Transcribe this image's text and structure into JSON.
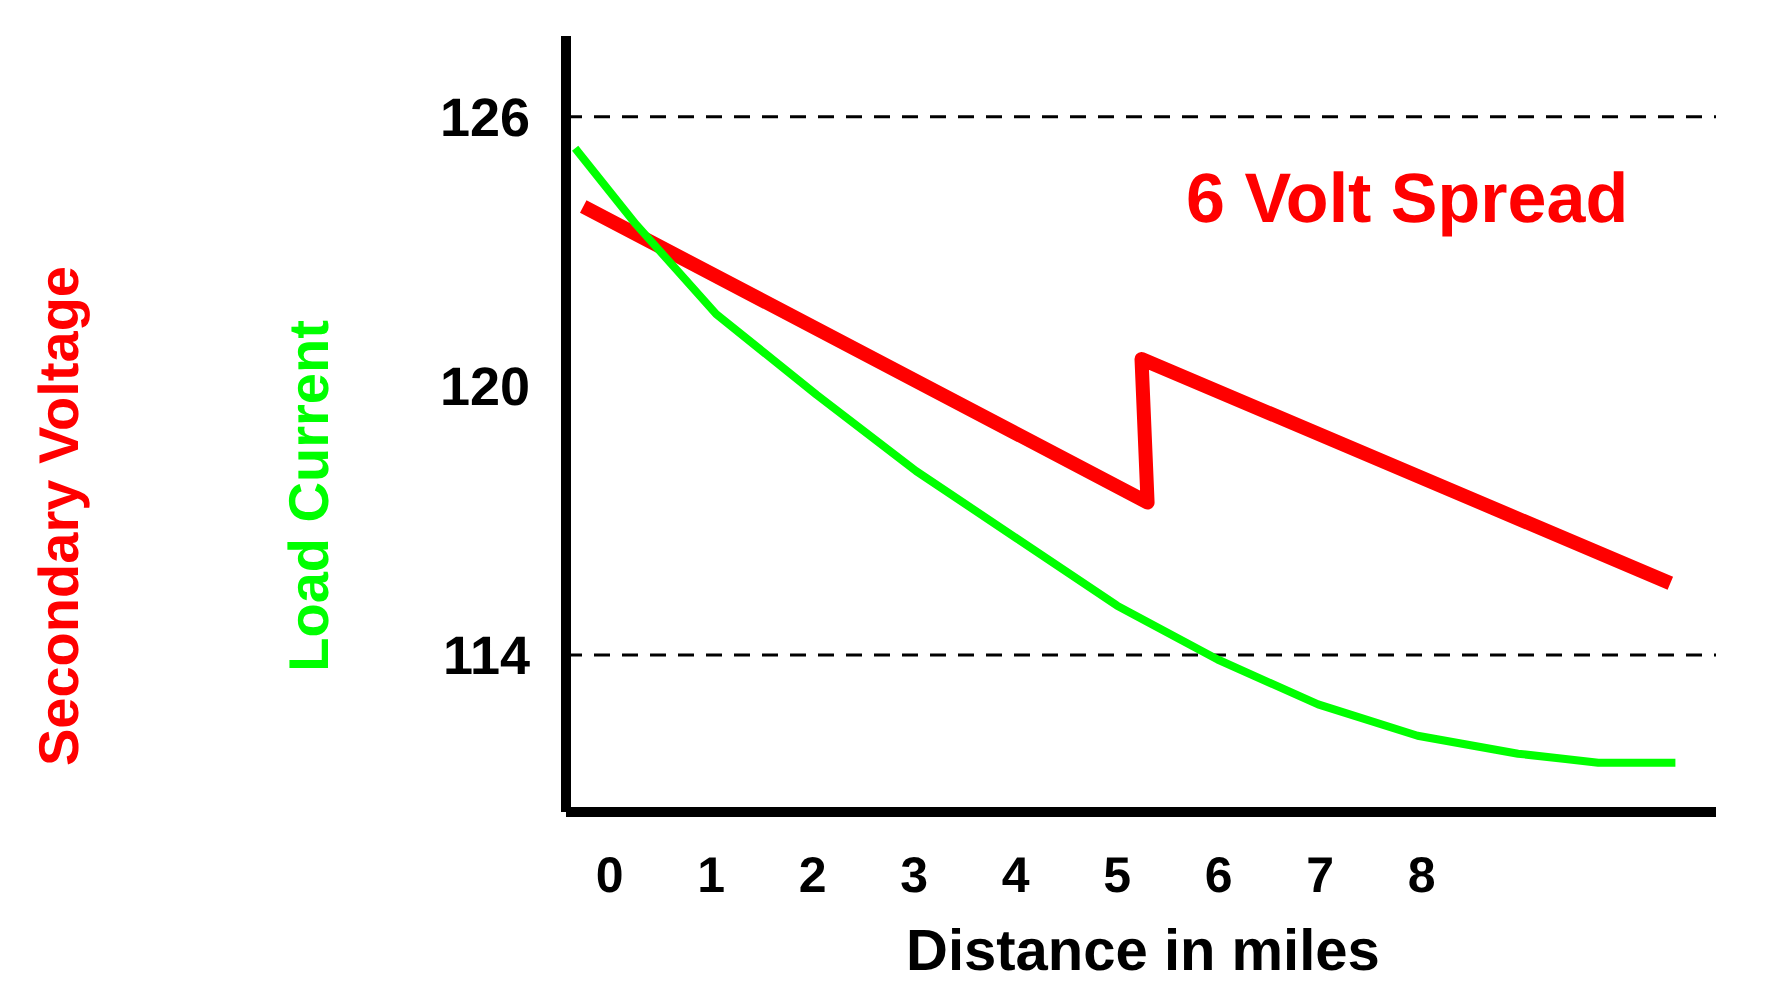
{
  "chart_data": {
    "type": "line",
    "xlabel": "Distance in miles",
    "annotations": [
      "6 Volt Spread"
    ],
    "xlim": [
      -0.43,
      10.9
    ],
    "xticks": [
      0,
      1,
      2,
      3,
      4,
      5,
      6,
      7,
      8
    ],
    "ylim": [
      110.5,
      127.8
    ],
    "yticks": [
      114,
      120,
      126
    ],
    "legend": false,
    "marker": "none",
    "line_style": "solid",
    "ref_lines": [
      {
        "axis": "y",
        "value": 126,
        "color": "#000000",
        "line_style": "dashed"
      },
      {
        "axis": "y",
        "value": 114,
        "color": "#000000",
        "line_style": "dashed"
      }
    ],
    "series": [
      {
        "name": "Secondary Voltage",
        "color": "#ff0000",
        "x": [
          -0.26,
          5.3,
          5.24,
          10.45
        ],
        "values": [
          124,
          117.4,
          120.6,
          115.6
        ]
      },
      {
        "name": "Load Current",
        "color": "#00ff00",
        "x": [
          -0.34,
          0.26,
          1.05,
          2.04,
          3.02,
          4.01,
          5.0,
          5.99,
          6.98,
          7.96,
          8.95,
          9.74,
          10.5
        ],
        "values": [
          125.3,
          123.6,
          121.6,
          119.8,
          118.1,
          116.6,
          115.1,
          113.9,
          112.9,
          112.2,
          111.8,
          111.6,
          111.6
        ]
      }
    ]
  }
}
